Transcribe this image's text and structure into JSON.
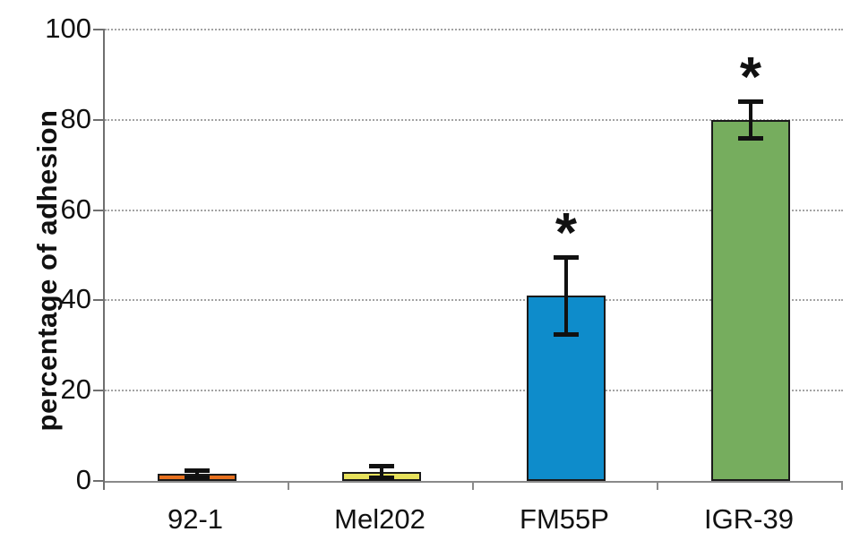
{
  "figure": {
    "background": "#ffffff",
    "significance_marker": "*"
  },
  "chart_data": {
    "type": "bar",
    "title": "",
    "xlabel": "",
    "ylabel": "percentage of adhesion",
    "ylim": [
      0,
      100
    ],
    "yticks": [
      0,
      20,
      40,
      60,
      80,
      100
    ],
    "grid": "horizontal dotted lines at y ticks 20-100",
    "legend": null,
    "categories": [
      "92-1",
      "Mel202",
      "FM55P",
      "IGR-39"
    ],
    "values": [
      1.5,
      2,
      41,
      80
    ],
    "errors": [
      0.7,
      1.2,
      8.5,
      4
    ],
    "significant": [
      false,
      false,
      true,
      true
    ],
    "bar_colors": [
      "#e8711f",
      "#e7e15c",
      "#0e8ccb",
      "#76ad5e"
    ],
    "bar_border_color": "#1a1a1a",
    "error_bar_color": "#111111",
    "axis_color": "#6f6f6f",
    "gridline_color": "#a3a3a3",
    "significance_note": "asterisk above error bar for FM55P and IGR-39"
  }
}
